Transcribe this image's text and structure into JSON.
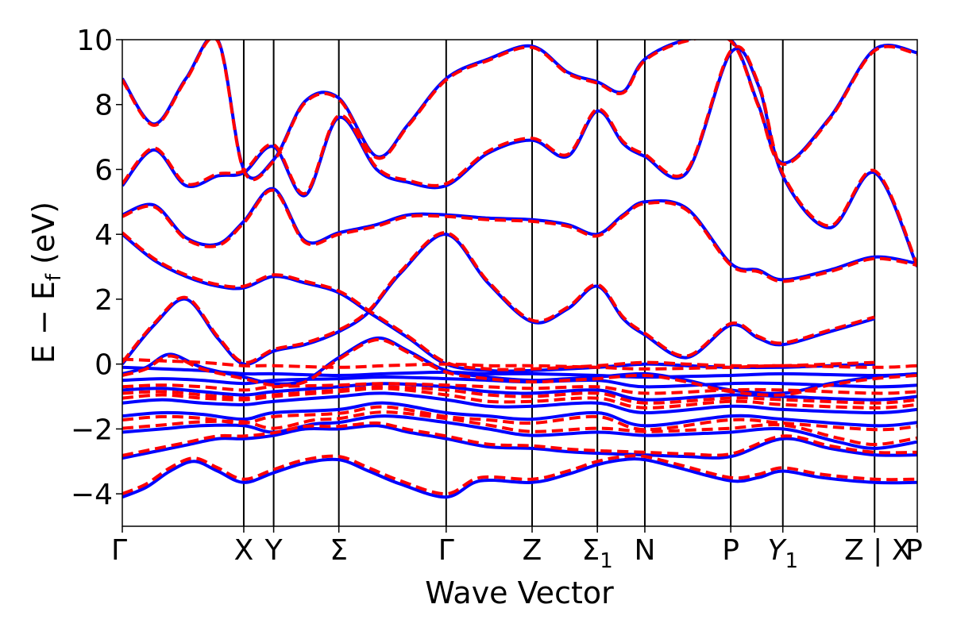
{
  "chart_data": {
    "type": "line",
    "title": "",
    "xlabel": "Wave Vector",
    "ylabel": "E − E_f (eV)",
    "ylabel_parts": {
      "main": "E − E",
      "sub": "f",
      "unit": " (eV)"
    },
    "ylim": [
      -5,
      10
    ],
    "yticks": [
      -4,
      -2,
      0,
      2,
      4,
      6,
      8,
      10
    ],
    "ytick_labels": [
      "−4",
      "−2",
      "0",
      "2",
      "4",
      "6",
      "8",
      "10"
    ],
    "grid": false,
    "legend": "none",
    "kpoints": [
      {
        "label": "Γ",
        "sub": "",
        "x": 0.0
      },
      {
        "label": "X",
        "sub": "",
        "x": 1.528
      },
      {
        "label": "Y",
        "sub": "",
        "x": 1.904
      },
      {
        "label": "Σ",
        "sub": "",
        "x": 2.724
      },
      {
        "label": "Γ",
        "sub": "",
        "x": 4.074
      },
      {
        "label": "Z",
        "sub": "",
        "x": 5.155
      },
      {
        "label": "Σ",
        "sub": "1",
        "x": 5.976
      },
      {
        "label": "N",
        "sub": "",
        "x": 6.573
      },
      {
        "label": "P",
        "sub": "",
        "x": 7.654
      },
      {
        "label": "Y",
        "sub": "1",
        "x": 8.309
      },
      {
        "label": "Z | X",
        "sub": "",
        "x": 9.463
      },
      {
        "label": "P",
        "sub": "",
        "x": 10.0
      }
    ],
    "series_styles": [
      {
        "name": "",
        "color": "#0000ff",
        "linestyle": "solid",
        "width": 4
      },
      {
        "name": "",
        "color": "#ff0000",
        "linestyle": "dashed",
        "width": 4
      }
    ],
    "series": [
      {
        "style": 0,
        "x": [
          0,
          0.3,
          0.6,
          0.9,
          1.2,
          1.528,
          1.904,
          2.3,
          2.724,
          3.1,
          3.5,
          4.074,
          4.5,
          5.155,
          5.6,
          5.976,
          6.3,
          6.573,
          7.0,
          7.654,
          8.0,
          8.309,
          8.8,
          9.463,
          10.0
        ],
        "y": [
          -4.1,
          -3.8,
          -3.3,
          -3.0,
          -3.3,
          -3.65,
          -3.35,
          -3.05,
          -2.95,
          -3.3,
          -3.7,
          -4.1,
          -3.6,
          -3.65,
          -3.4,
          -3.1,
          -2.95,
          -2.95,
          -3.2,
          -3.6,
          -3.5,
          -3.3,
          -3.5,
          -3.65,
          -3.65
        ]
      },
      {
        "style": 0,
        "x": [
          0,
          0.4,
          0.8,
          1.2,
          1.528,
          1.904,
          2.3,
          2.724,
          3.2,
          3.6,
          4.074,
          4.6,
          5.155,
          5.6,
          5.976,
          6.573,
          7.1,
          7.654,
          8.309,
          8.9,
          9.463,
          10.0
        ],
        "y": [
          -2.9,
          -2.7,
          -2.5,
          -2.3,
          -2.3,
          -2.2,
          -2.0,
          -2.0,
          -1.9,
          -2.1,
          -2.3,
          -2.55,
          -2.6,
          -2.7,
          -2.75,
          -2.8,
          -2.85,
          -2.85,
          -2.3,
          -2.6,
          -2.8,
          -2.8
        ]
      },
      {
        "style": 0,
        "x": [
          0,
          0.5,
          1.0,
          1.528,
          1.904,
          2.4,
          2.724,
          3.3,
          4.074,
          4.6,
          5.155,
          5.976,
          6.573,
          7.2,
          7.654,
          8.309,
          9.0,
          9.463,
          10.0
        ],
        "y": [
          -2.1,
          -2.0,
          -1.9,
          -1.9,
          -2.1,
          -1.85,
          -1.8,
          -1.6,
          -1.8,
          -2.0,
          -2.2,
          -2.1,
          -2.2,
          -2.15,
          -2.1,
          -2.0,
          -2.4,
          -2.6,
          -2.4
        ]
      },
      {
        "style": 0,
        "x": [
          0,
          0.5,
          1.0,
          1.528,
          1.904,
          2.724,
          3.3,
          4.074,
          4.6,
          5.155,
          5.976,
          6.573,
          7.654,
          8.309,
          9.463,
          10.0
        ],
        "y": [
          -1.6,
          -1.5,
          -1.55,
          -1.7,
          -1.5,
          -1.4,
          -1.2,
          -1.5,
          -1.6,
          -1.7,
          -1.5,
          -1.9,
          -1.6,
          -1.7,
          -1.9,
          -1.8
        ]
      },
      {
        "style": 0,
        "x": [
          0,
          0.5,
          1.0,
          1.528,
          1.904,
          2.724,
          3.3,
          4.074,
          4.6,
          5.155,
          5.976,
          6.573,
          7.654,
          8.309,
          9.463,
          10.0
        ],
        "y": [
          -1.2,
          -1.1,
          -1.2,
          -1.25,
          -1.15,
          -1.0,
          -0.9,
          -1.1,
          -1.3,
          -1.3,
          -1.2,
          -1.5,
          -1.3,
          -1.4,
          -1.5,
          -1.4
        ]
      },
      {
        "style": 0,
        "x": [
          0,
          0.5,
          1.0,
          1.528,
          1.904,
          2.724,
          3.3,
          4.074,
          4.6,
          5.155,
          5.976,
          6.573,
          7.654,
          8.309,
          9.463,
          10.0
        ],
        "y": [
          -0.8,
          -0.75,
          -0.85,
          -0.95,
          -0.85,
          -0.7,
          -0.6,
          -0.7,
          -0.85,
          -0.9,
          -0.8,
          -1.1,
          -0.95,
          -1.0,
          -1.1,
          -1.0
        ]
      },
      {
        "style": 0,
        "x": [
          0,
          0.5,
          1.0,
          1.528,
          1.904,
          2.724,
          3.3,
          4.074,
          4.6,
          5.155,
          5.976,
          6.573,
          7.654,
          8.309,
          9.463,
          10.0
        ],
        "y": [
          -0.5,
          -0.45,
          -0.5,
          -0.6,
          -0.5,
          -0.45,
          -0.4,
          -0.45,
          -0.5,
          -0.55,
          -0.5,
          -0.7,
          -0.6,
          -0.6,
          -0.7,
          -0.65
        ]
      },
      {
        "style": 0,
        "x": [
          0,
          0.5,
          1.0,
          1.528,
          1.904,
          2.724,
          3.3,
          4.074,
          4.6,
          5.155,
          5.976,
          6.573,
          7.654,
          8.309,
          9.463,
          10.0
        ],
        "y": [
          -0.1,
          -0.15,
          -0.2,
          -0.3,
          -0.3,
          -0.35,
          -0.3,
          -0.25,
          -0.3,
          -0.3,
          -0.35,
          -0.4,
          -0.35,
          -0.3,
          -0.35,
          -0.3
        ]
      },
      {
        "style": 0,
        "x": [
          0,
          0.3,
          0.6,
          1.0,
          1.528,
          1.904,
          2.3,
          2.724,
          3.2,
          3.6,
          4.074,
          4.6,
          5.155,
          5.6,
          5.976,
          6.573,
          7.1,
          7.654,
          8.309,
          8.9,
          9.463,
          10.0
        ],
        "y": [
          -0.3,
          -0.1,
          0.3,
          -0.1,
          -0.4,
          -0.6,
          -0.5,
          0.2,
          0.8,
          0.4,
          -0.2,
          -0.4,
          -0.5,
          -0.45,
          -0.4,
          -0.3,
          -0.5,
          -0.8,
          -0.9,
          -0.6,
          -0.4,
          -0.3
        ]
      },
      {
        "style": 0,
        "x": [
          0,
          0.4,
          0.8,
          1.2,
          1.528,
          1.904,
          2.3,
          2.724,
          3.1,
          3.5,
          4.074,
          4.6,
          5.155,
          5.6,
          5.976,
          6.3,
          6.573,
          7.1,
          7.654,
          8.0,
          8.309,
          8.9,
          9.463
        ],
        "y": [
          0.0,
          1.2,
          2.0,
          0.8,
          0.0,
          0.4,
          0.6,
          1.0,
          1.6,
          2.8,
          4.0,
          2.5,
          1.3,
          1.7,
          2.4,
          1.4,
          0.9,
          0.2,
          1.2,
          0.8,
          0.6,
          1.0,
          1.4
        ]
      },
      {
        "style": 0,
        "x": [
          0,
          0.4,
          0.8,
          1.2,
          1.528,
          1.904,
          2.3,
          2.724,
          3.1,
          3.6,
          4.074,
          4.6,
          5.155,
          5.976,
          6.573,
          7.1,
          7.654,
          8.309,
          8.9,
          9.463
        ],
        "y": [
          4.0,
          3.2,
          2.7,
          2.4,
          2.35,
          2.7,
          2.5,
          2.2,
          1.6,
          0.8,
          0.0,
          -0.2,
          -0.2,
          -0.1,
          0.0,
          -0.05,
          -0.1,
          -0.1,
          -0.05,
          0.0
        ]
      },
      {
        "style": 0,
        "x": [
          0,
          0.4,
          0.8,
          1.2,
          1.528,
          1.904,
          2.3,
          2.724,
          3.2,
          3.6,
          4.074,
          4.6,
          5.155,
          5.6,
          5.976,
          6.3,
          6.573,
          7.1,
          7.654,
          8.0,
          8.309,
          8.9,
          9.463,
          10.0
        ],
        "y": [
          4.6,
          4.9,
          3.9,
          3.7,
          4.4,
          5.4,
          3.8,
          4.05,
          4.3,
          4.6,
          4.6,
          4.5,
          4.45,
          4.3,
          4.0,
          4.6,
          5.0,
          4.8,
          3.1,
          2.9,
          2.6,
          2.9,
          3.3,
          3.1
        ]
      },
      {
        "style": 0,
        "x": [
          0,
          0.4,
          0.8,
          1.2,
          1.528,
          1.904,
          2.3,
          2.724,
          3.2,
          3.6,
          4.074,
          4.6,
          5.155,
          5.6,
          5.976,
          6.3,
          6.573,
          7.1,
          7.654,
          8.0,
          8.309,
          8.9,
          9.463,
          10.0
        ],
        "y": [
          5.5,
          6.6,
          5.5,
          5.8,
          5.9,
          6.7,
          5.2,
          7.6,
          6.0,
          5.6,
          5.5,
          6.5,
          6.9,
          6.4,
          7.8,
          6.8,
          6.4,
          5.9,
          9.6,
          8.6,
          5.8,
          4.2,
          5.9,
          3.0
        ]
      },
      {
        "style": 0,
        "x": [
          0,
          0.4,
          0.8,
          1.2,
          1.528,
          1.904,
          2.3,
          2.724,
          3.2,
          3.6,
          4.074,
          4.6,
          5.155,
          5.6,
          5.976,
          6.3,
          6.573,
          7.1,
          7.654,
          8.0,
          8.309,
          8.9,
          9.463,
          10.0
        ],
        "y": [
          8.8,
          7.4,
          8.8,
          10.0,
          6.0,
          6.3,
          8.1,
          8.2,
          6.4,
          7.4,
          8.8,
          9.4,
          9.8,
          9.0,
          8.7,
          8.4,
          9.4,
          10.0,
          10.0,
          8.0,
          6.2,
          7.6,
          9.7,
          9.6
        ]
      }
    ],
    "offset_dashed": [
      0.1,
      0.08,
      0.12,
      -0.12,
      0.15,
      -0.1,
      -0.2,
      0.25,
      -0.05,
      0.05,
      0.05,
      -0.05,
      0.06,
      -0.04
    ]
  }
}
